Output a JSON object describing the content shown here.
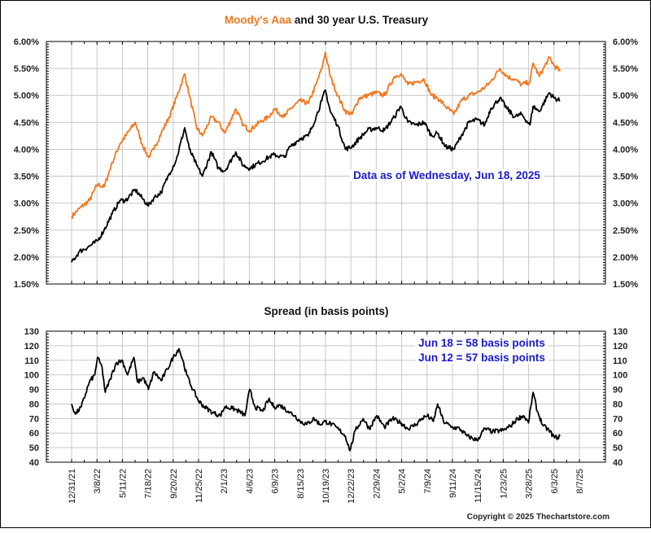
{
  "colors": {
    "aaa": "#f07820",
    "treasury": "#000000",
    "spread": "#000000",
    "annotation": "#1a1acc",
    "grid": "#c8c8c8"
  },
  "chart_data": [
    {
      "type": "line",
      "title_parts": [
        {
          "text": "Moody's Aaa",
          "color": "#f07820"
        },
        {
          "text": " and 30 year U.S. Treasury",
          "color": "#111111"
        }
      ],
      "title": "Moody's Aaa and 30 year U.S. Treasury",
      "xlabel": "",
      "ylabel": "",
      "ylim": [
        1.5,
        6.0
      ],
      "ytick_labels": [
        "6.00%",
        "5.50%",
        "5.00%",
        "4.50%",
        "4.00%",
        "3.50%",
        "3.00%",
        "2.50%",
        "2.00%",
        "1.50%"
      ],
      "yticks": [
        6.0,
        5.5,
        5.0,
        4.5,
        4.0,
        3.5,
        3.0,
        2.5,
        2.0,
        1.5
      ],
      "grid": true,
      "annotation": "Data as of Wednesday, Jun 18, 2025",
      "series": [
        {
          "name": "Moody's Aaa",
          "color": "#f07820",
          "x": [
            "2021-12-31",
            "2022-01-20",
            "2022-02-15",
            "2022-03-08",
            "2022-03-25",
            "2022-04-15",
            "2022-05-05",
            "2022-05-20",
            "2022-06-14",
            "2022-07-01",
            "2022-07-18",
            "2022-08-01",
            "2022-08-20",
            "2022-09-10",
            "2022-09-28",
            "2022-10-20",
            "2022-11-01",
            "2022-11-20",
            "2022-12-05",
            "2022-12-28",
            "2023-01-15",
            "2023-02-01",
            "2023-03-01",
            "2023-03-20",
            "2023-04-06",
            "2023-05-01",
            "2023-05-25",
            "2023-06-09",
            "2023-07-05",
            "2023-07-20",
            "2023-08-15",
            "2023-09-05",
            "2023-09-25",
            "2023-10-10",
            "2023-10-19",
            "2023-11-01",
            "2023-11-20",
            "2023-12-10",
            "2023-12-27",
            "2024-01-15",
            "2024-02-05",
            "2024-02-29",
            "2024-03-20",
            "2024-04-15",
            "2024-05-01",
            "2024-05-20",
            "2024-06-10",
            "2024-07-01",
            "2024-07-20",
            "2024-08-05",
            "2024-08-25",
            "2024-09-16",
            "2024-10-05",
            "2024-10-25",
            "2024-11-15",
            "2024-12-05",
            "2024-12-20",
            "2025-01-13",
            "2025-02-01",
            "2025-02-20",
            "2025-03-10",
            "2025-04-01",
            "2025-04-09",
            "2025-04-25",
            "2025-05-21",
            "2025-06-03",
            "2025-06-18"
          ],
          "values": [
            2.75,
            2.9,
            3.05,
            3.35,
            3.3,
            3.75,
            4.1,
            4.25,
            4.5,
            4.1,
            3.85,
            4.0,
            4.3,
            4.6,
            4.95,
            5.4,
            5.0,
            4.4,
            4.25,
            4.6,
            4.5,
            4.3,
            4.75,
            4.45,
            4.35,
            4.5,
            4.6,
            4.75,
            4.6,
            4.75,
            4.9,
            4.85,
            5.2,
            5.5,
            5.8,
            5.35,
            5.0,
            4.7,
            4.65,
            4.95,
            5.0,
            5.05,
            5.0,
            5.35,
            5.4,
            5.2,
            5.25,
            5.3,
            5.0,
            4.95,
            4.8,
            4.65,
            4.9,
            5.0,
            5.05,
            5.15,
            5.25,
            5.5,
            5.35,
            5.3,
            5.2,
            5.25,
            5.6,
            5.35,
            5.7,
            5.55,
            5.45
          ]
        },
        {
          "name": "30 year U.S. Treasury",
          "color": "#000000",
          "x": [
            "2021-12-31",
            "2022-01-20",
            "2022-02-15",
            "2022-03-08",
            "2022-03-25",
            "2022-04-15",
            "2022-05-05",
            "2022-05-20",
            "2022-06-14",
            "2022-07-01",
            "2022-07-18",
            "2022-08-01",
            "2022-08-20",
            "2022-09-10",
            "2022-09-28",
            "2022-10-20",
            "2022-11-01",
            "2022-11-20",
            "2022-12-05",
            "2022-12-28",
            "2023-01-15",
            "2023-02-01",
            "2023-03-01",
            "2023-03-20",
            "2023-04-06",
            "2023-05-01",
            "2023-05-25",
            "2023-06-09",
            "2023-07-05",
            "2023-07-20",
            "2023-08-15",
            "2023-09-05",
            "2023-09-25",
            "2023-10-10",
            "2023-10-19",
            "2023-11-01",
            "2023-11-20",
            "2023-12-10",
            "2023-12-27",
            "2024-01-15",
            "2024-02-05",
            "2024-02-29",
            "2024-03-20",
            "2024-04-15",
            "2024-05-01",
            "2024-05-20",
            "2024-06-10",
            "2024-07-01",
            "2024-07-20",
            "2024-08-05",
            "2024-08-25",
            "2024-09-16",
            "2024-10-05",
            "2024-10-25",
            "2024-11-15",
            "2024-12-05",
            "2024-12-20",
            "2025-01-13",
            "2025-02-01",
            "2025-02-20",
            "2025-03-10",
            "2025-04-01",
            "2025-04-09",
            "2025-04-25",
            "2025-05-21",
            "2025-06-03",
            "2025-06-18"
          ],
          "values": [
            1.9,
            2.1,
            2.2,
            2.3,
            2.5,
            2.8,
            3.05,
            3.05,
            3.25,
            3.1,
            2.95,
            3.1,
            3.2,
            3.55,
            3.8,
            4.4,
            4.0,
            3.7,
            3.5,
            3.95,
            3.65,
            3.6,
            3.95,
            3.7,
            3.65,
            3.75,
            3.85,
            3.9,
            3.85,
            4.05,
            4.2,
            4.25,
            4.6,
            4.9,
            5.1,
            4.7,
            4.45,
            4.0,
            4.05,
            4.2,
            4.35,
            4.4,
            4.35,
            4.6,
            4.8,
            4.5,
            4.45,
            4.5,
            4.25,
            4.3,
            4.05,
            4.0,
            4.25,
            4.5,
            4.55,
            4.45,
            4.75,
            4.95,
            4.75,
            4.6,
            4.65,
            4.45,
            4.8,
            4.7,
            5.05,
            4.95,
            4.9
          ]
        }
      ]
    },
    {
      "type": "line",
      "title": "Spread (in basis points)",
      "xlabel": "",
      "ylabel": "",
      "ylim": [
        40,
        130
      ],
      "yticks": [
        130,
        120,
        110,
        100,
        90,
        80,
        70,
        60,
        50,
        40
      ],
      "ytick_labels": [
        "130",
        "120",
        "110",
        "100",
        "90",
        "80",
        "70",
        "60",
        "50",
        "40"
      ],
      "grid": true,
      "annotations": [
        "Jun 18 = 58 basis points",
        "Jun 12 = 57 basis points"
      ],
      "series": [
        {
          "name": "Spread",
          "color": "#000000",
          "x": [
            "2021-12-31",
            "2022-01-10",
            "2022-01-25",
            "2022-02-15",
            "2022-03-01",
            "2022-03-08",
            "2022-03-20",
            "2022-03-28",
            "2022-04-10",
            "2022-04-25",
            "2022-05-11",
            "2022-05-25",
            "2022-06-10",
            "2022-06-20",
            "2022-07-05",
            "2022-07-18",
            "2022-08-01",
            "2022-08-20",
            "2022-09-05",
            "2022-09-20",
            "2022-10-05",
            "2022-10-15",
            "2022-10-25",
            "2022-11-10",
            "2022-11-25",
            "2022-12-10",
            "2023-01-01",
            "2023-01-20",
            "2023-02-01",
            "2023-02-20",
            "2023-03-10",
            "2023-03-25",
            "2023-04-06",
            "2023-04-20",
            "2023-05-10",
            "2023-05-25",
            "2023-06-09",
            "2023-06-25",
            "2023-07-15",
            "2023-08-01",
            "2023-08-15",
            "2023-09-01",
            "2023-09-20",
            "2023-10-05",
            "2023-10-19",
            "2023-11-05",
            "2023-11-25",
            "2023-12-10",
            "2023-12-22",
            "2024-01-05",
            "2024-01-25",
            "2024-02-10",
            "2024-02-29",
            "2024-03-20",
            "2024-04-10",
            "2024-05-02",
            "2024-05-20",
            "2024-06-10",
            "2024-06-25",
            "2024-07-09",
            "2024-07-25",
            "2024-08-05",
            "2024-08-20",
            "2024-09-11",
            "2024-10-01",
            "2024-10-20",
            "2024-11-15",
            "2024-12-05",
            "2024-12-25",
            "2025-01-23",
            "2025-02-10",
            "2025-02-28",
            "2025-03-15",
            "2025-03-28",
            "2025-04-09",
            "2025-04-20",
            "2025-05-05",
            "2025-05-20",
            "2025-06-03",
            "2025-06-12",
            "2025-06-18"
          ],
          "values": [
            80,
            73,
            78,
            95,
            100,
            112,
            105,
            88,
            97,
            108,
            110,
            100,
            112,
            95,
            98,
            90,
            102,
            96,
            104,
            112,
            118,
            110,
            100,
            90,
            82,
            78,
            74,
            72,
            78,
            77,
            75,
            72,
            90,
            78,
            75,
            83,
            78,
            79,
            75,
            72,
            68,
            66,
            70,
            66,
            68,
            66,
            62,
            58,
            48,
            62,
            70,
            63,
            72,
            64,
            70,
            67,
            63,
            66,
            70,
            72,
            68,
            80,
            68,
            64,
            63,
            58,
            55,
            63,
            61,
            62,
            65,
            70,
            72,
            67,
            88,
            75,
            65,
            62,
            57,
            57,
            58
          ]
        }
      ]
    }
  ],
  "x_axis": {
    "tick_labels": [
      "12/31/21",
      "3/8/22",
      "5/11/22",
      "7/18/22",
      "9/20/22",
      "11/25/22",
      "2/1/23",
      "4/6/23",
      "6/9/23",
      "8/15/23",
      "10/19/23",
      "12/22/23",
      "2/29/24",
      "5/2/24",
      "7/9/24",
      "9/11/24",
      "11/15/24",
      "1/23/25",
      "3/28/25",
      "6/3/25",
      "8/7/25"
    ]
  },
  "copyright": "Copyright © 2025 Thechartstore.com"
}
